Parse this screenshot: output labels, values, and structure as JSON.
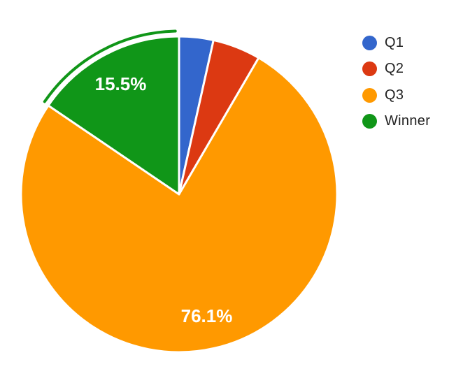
{
  "chart_data": {
    "type": "pie",
    "title": "",
    "background_color": "#ffffff",
    "legend_position": "right",
    "direction": "clockwise",
    "start_angle_deg": 0,
    "slice_label_color": "#ffffff",
    "legend_text_color": "#222222",
    "slices": [
      {
        "name": "Q1",
        "pct": 3.5,
        "color": "#3366CC",
        "value_label": "",
        "selected": false
      },
      {
        "name": "Q2",
        "pct": 4.9,
        "color": "#DC3912",
        "value_label": "",
        "selected": false
      },
      {
        "name": "Q3",
        "pct": 76.1,
        "color": "#FF9900",
        "value_label": "76.1%",
        "selected": false
      },
      {
        "name": "Winner",
        "pct": 15.5,
        "color": "#109618",
        "value_label": "15.5%",
        "selected": true
      }
    ],
    "legend": [
      {
        "label": "Q1",
        "color": "#3366CC"
      },
      {
        "label": "Q2",
        "color": "#DC3912"
      },
      {
        "label": "Q3",
        "color": "#FF9900"
      },
      {
        "label": "Winner",
        "color": "#109618"
      }
    ]
  }
}
